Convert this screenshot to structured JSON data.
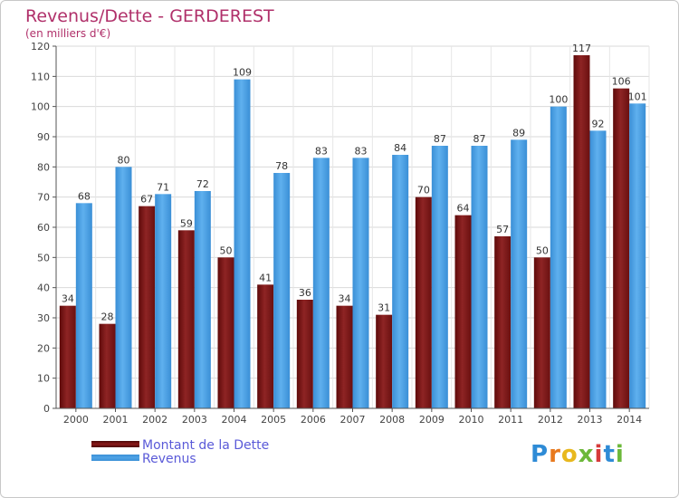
{
  "header": {
    "title": "Revenus/Dette - GERDEREST",
    "subtitle": "(en milliers d'€)"
  },
  "chart_data": {
    "type": "bar",
    "categories": [
      "2000",
      "2001",
      "2002",
      "2003",
      "2004",
      "2005",
      "2006",
      "2007",
      "2008",
      "2009",
      "2010",
      "2011",
      "2012",
      "2013",
      "2014"
    ],
    "series": [
      {
        "name": "Montant de la Dette",
        "color": "#8b1a1a",
        "values": [
          34,
          28,
          67,
          59,
          50,
          41,
          36,
          34,
          31,
          70,
          64,
          57,
          50,
          117,
          106
        ]
      },
      {
        "name": "Revenus",
        "color": "#4fa3e6",
        "values": [
          68,
          80,
          71,
          72,
          109,
          78,
          83,
          83,
          84,
          87,
          87,
          89,
          100,
          92,
          101
        ]
      }
    ],
    "ylim": [
      0,
      120
    ],
    "yticks": [
      0,
      10,
      20,
      30,
      40,
      50,
      60,
      70,
      80,
      90,
      100,
      110,
      120
    ],
    "grid": true,
    "legend_position": "bottom-left"
  },
  "legend": {
    "items": [
      {
        "label": "Montant de la Dette",
        "color": "#8b1a1a"
      },
      {
        "label": "Revenus",
        "color": "#4fa3e6"
      }
    ]
  },
  "logo": {
    "letters": [
      "P",
      "r",
      "o",
      "x",
      "i",
      "t",
      "i"
    ],
    "colors": [
      "#2e8bd6",
      "#e8791e",
      "#e8b81e",
      "#6cb83a",
      "#d63a3a",
      "#2e8bd6",
      "#6cb83a"
    ]
  }
}
